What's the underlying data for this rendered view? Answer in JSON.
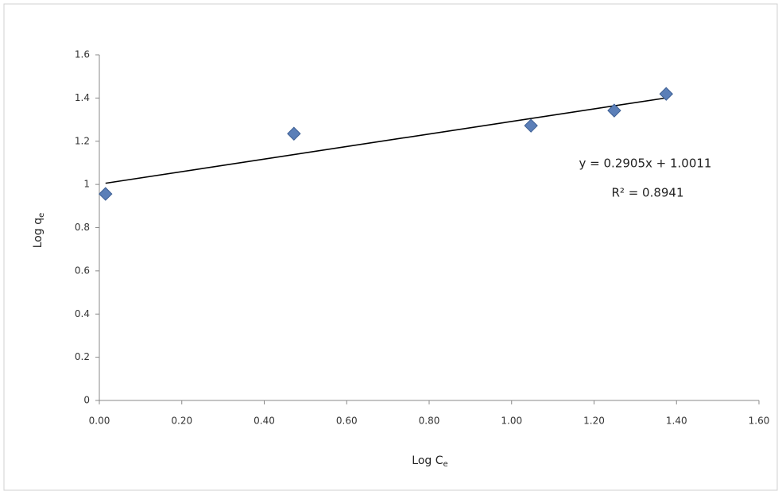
{
  "chart_data": {
    "type": "scatter",
    "x_label": {
      "text": "Log C",
      "subscript": "e"
    },
    "y_label": {
      "text": "Log q",
      "subscript": "e"
    },
    "series": [
      {
        "name": "Log qe",
        "color": "#5b7fb8",
        "x": [
          0.015,
          0.472,
          1.047,
          1.249,
          1.375
        ],
        "values": [
          0.956,
          1.235,
          1.272,
          1.342,
          1.419
        ]
      }
    ],
    "trendline": {
      "slope": 0.2905,
      "intercept": 1.0011,
      "color": "#000000",
      "equation": "y = 0.2905x + 1.0011",
      "r_squared_label": "R² = 0.8941",
      "r_squared": 0.8941
    },
    "xlim": [
      0,
      1.6
    ],
    "xticks": [
      {
        "value": 0,
        "label": "0.00"
      },
      {
        "value": 0.2,
        "label": "0.20"
      },
      {
        "value": 0.4,
        "label": "0.40"
      },
      {
        "value": 0.6,
        "label": "0.60"
      },
      {
        "value": 0.8,
        "label": "0.80"
      },
      {
        "value": 1.0,
        "label": "1.00"
      },
      {
        "value": 1.2,
        "label": "1.20"
      },
      {
        "value": 1.4,
        "label": "1.40"
      },
      {
        "value": 1.6,
        "label": "1.60"
      }
    ],
    "ylim": [
      0,
      1.6
    ],
    "yticks": [
      0,
      0.2,
      0.4,
      0.6,
      0.8,
      1,
      1.2,
      1.4,
      1.6
    ],
    "grid": false
  }
}
